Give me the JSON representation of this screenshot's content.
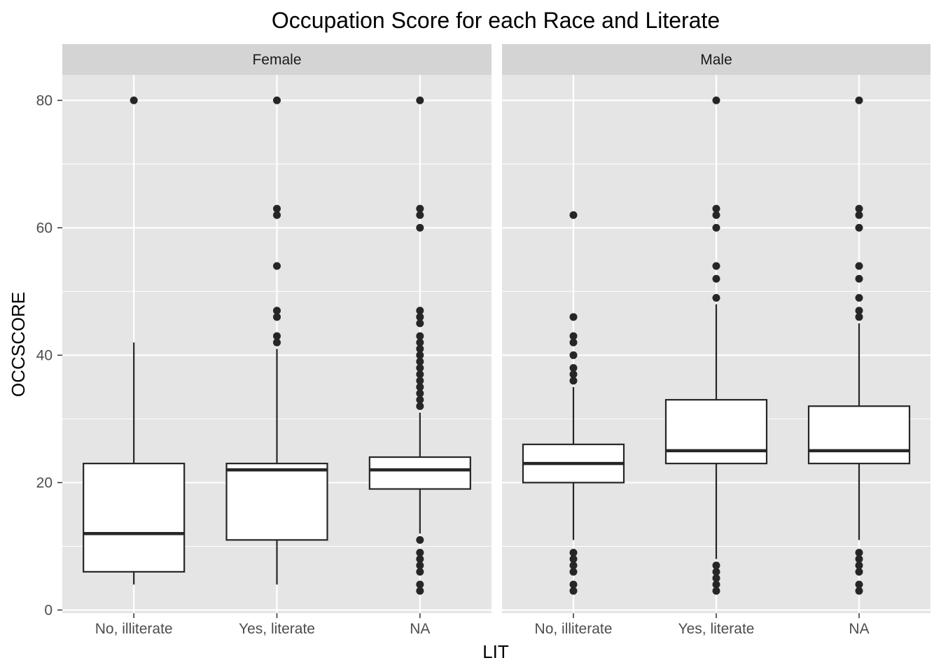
{
  "chart_data": {
    "type": "boxplot",
    "title": "Occupation Score for each Race and Literate",
    "xlabel": "LIT",
    "ylabel": "OCCSCORE",
    "ylim": [
      -0.5,
      84
    ],
    "yticks": [
      0,
      20,
      40,
      60,
      80
    ],
    "categories": [
      "No, illiterate",
      "Yes, literate",
      "NA"
    ],
    "facets": [
      {
        "name": "Female",
        "boxes": [
          {
            "category": "No, illiterate",
            "whisker_low": 4,
            "q1": 6,
            "median": 12,
            "q3": 23,
            "whisker_high": 42,
            "outliers": [
              80
            ]
          },
          {
            "category": "Yes, literate",
            "whisker_low": 4,
            "q1": 11,
            "median": 22,
            "q3": 23,
            "whisker_high": 41,
            "outliers": [
              42,
              43,
              46,
              47,
              54,
              62,
              63,
              80
            ]
          },
          {
            "category": "NA",
            "whisker_low": 12,
            "q1": 19,
            "median": 22,
            "q3": 24,
            "whisker_high": 31,
            "outliers": [
              3,
              4,
              6,
              7,
              8,
              9,
              11,
              32,
              33,
              34,
              35,
              36,
              37,
              38,
              39,
              40,
              41,
              42,
              43,
              45,
              46,
              47,
              60,
              62,
              63,
              80
            ]
          }
        ]
      },
      {
        "name": "Male",
        "boxes": [
          {
            "category": "No, illiterate",
            "whisker_low": 11,
            "q1": 20,
            "median": 23,
            "q3": 26,
            "whisker_high": 35,
            "outliers": [
              3,
              4,
              6,
              7,
              8,
              9,
              36,
              37,
              38,
              40,
              42,
              43,
              46,
              62
            ]
          },
          {
            "category": "Yes, literate",
            "whisker_low": 8,
            "q1": 23,
            "median": 25,
            "q3": 33,
            "whisker_high": 48,
            "outliers": [
              3,
              4,
              5,
              6,
              7,
              49,
              52,
              54,
              60,
              62,
              63,
              80
            ]
          },
          {
            "category": "NA",
            "whisker_low": 11,
            "q1": 23,
            "median": 25,
            "q3": 32,
            "whisker_high": 45,
            "outliers": [
              3,
              4,
              6,
              7,
              8,
              9,
              46,
              47,
              49,
              52,
              54,
              60,
              62,
              63,
              80
            ]
          }
        ]
      }
    ],
    "grid": true,
    "colors": {
      "panel_background": "#e5e5e5",
      "strip_background": "#d4d4d4",
      "grid_line": "#ffffff",
      "box_fill": "#ffffff",
      "box_stroke": "#262626",
      "point": "#262626"
    }
  }
}
